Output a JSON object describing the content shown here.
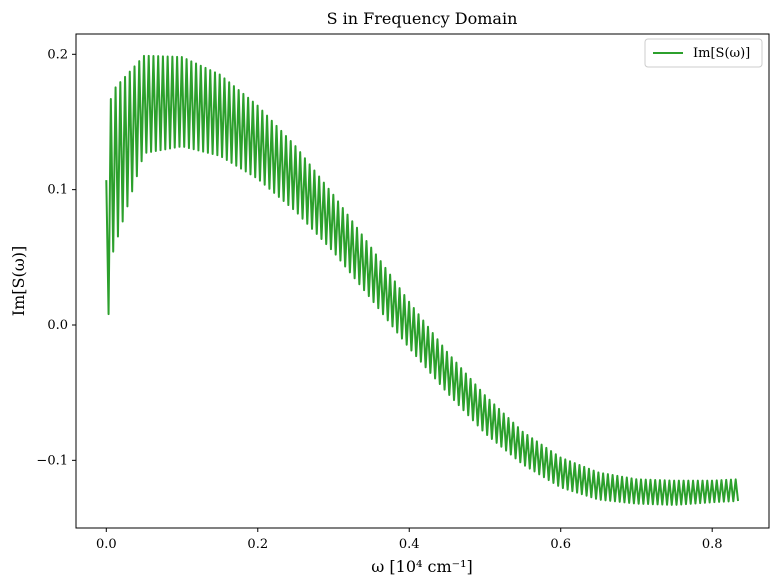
{
  "chart_data": {
    "type": "line",
    "title": "S in Frequency Domain",
    "xlabel": "ω [10⁴ cm⁻¹]",
    "ylabel": "Im[S(ω)]",
    "xlim": [
      -0.04,
      0.875
    ],
    "ylim": [
      -0.15,
      0.215
    ],
    "xticks": [
      0.0,
      0.2,
      0.4,
      0.6,
      0.8
    ],
    "xtick_labels": [
      "0.0",
      "0.2",
      "0.4",
      "0.6",
      "0.8"
    ],
    "yticks": [
      -0.1,
      0.0,
      0.1,
      0.2
    ],
    "ytick_labels": [
      "−0.1",
      "0.0",
      "0.1",
      "0.2"
    ],
    "grid": false,
    "legend_position": "top-right",
    "series": [
      {
        "name": "Im[S(ω)]",
        "color": "#2ca02c",
        "envelope_x": [
          0.0,
          0.05,
          0.1,
          0.15,
          0.2,
          0.25,
          0.3,
          0.35,
          0.4,
          0.45,
          0.5,
          0.55,
          0.6,
          0.65,
          0.7,
          0.75,
          0.8,
          0.835
        ],
        "center_y": [
          0.103,
          0.163,
          0.165,
          0.155,
          0.135,
          0.108,
          0.075,
          0.038,
          0.0,
          -0.035,
          -0.066,
          -0.091,
          -0.109,
          -0.119,
          -0.123,
          -0.124,
          -0.123,
          -0.122
        ],
        "amplitude": [
          0.065,
          0.036,
          0.033,
          0.03,
          0.027,
          0.024,
          0.021,
          0.019,
          0.017,
          0.015,
          0.014,
          0.012,
          0.011,
          0.01,
          0.009,
          0.009,
          0.008,
          0.008
        ],
        "oscillation_period": 0.00625,
        "initial_spike": {
          "x": [
            0.0,
            0.003,
            0.006
          ],
          "y": [
            0.107,
            0.008,
            0.167
          ]
        }
      }
    ]
  }
}
